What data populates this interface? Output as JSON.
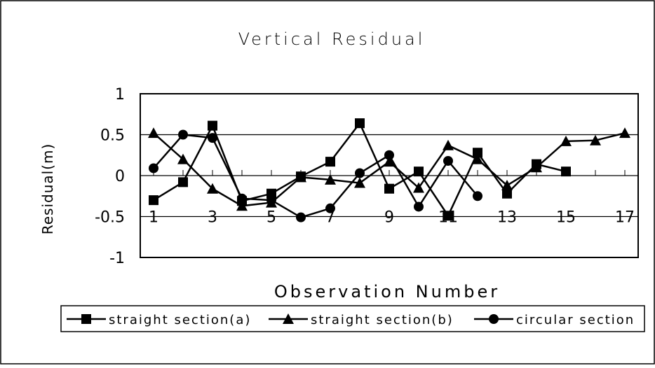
{
  "chart_data": {
    "type": "line",
    "title": "Vertical Residual",
    "xlabel": "Observation Number",
    "ylabel": "Residual(m)",
    "ylim": [
      -1,
      1
    ],
    "xlim": [
      1,
      17
    ],
    "yticks": [
      "1",
      "0.5",
      "0",
      "-0.5",
      "-1"
    ],
    "xticks": [
      "1",
      "3",
      "5",
      "7",
      "9",
      "11",
      "13",
      "15",
      "17"
    ],
    "grid": "horizontal",
    "legend": "bottom",
    "series": [
      {
        "name": "straight section(a)",
        "marker": "square",
        "color": "#000000",
        "x": [
          1,
          2,
          3,
          4,
          5,
          6,
          7,
          8,
          9,
          10,
          11,
          12,
          13,
          14,
          15
        ],
        "values": [
          -0.3,
          -0.08,
          0.61,
          -0.31,
          -0.22,
          -0.01,
          0.17,
          0.64,
          -0.16,
          0.05,
          -0.49,
          0.28,
          -0.22,
          0.14,
          0.05
        ]
      },
      {
        "name": "straight section(b)",
        "marker": "triangle",
        "color": "#000000",
        "x": [
          1,
          2,
          3,
          4,
          5,
          6,
          7,
          8,
          9,
          10,
          11,
          12,
          13,
          14,
          15,
          16,
          17
        ],
        "values": [
          0.52,
          0.2,
          -0.16,
          -0.37,
          -0.33,
          -0.02,
          -0.05,
          -0.09,
          0.17,
          -0.15,
          0.37,
          0.2,
          -0.12,
          0.1,
          0.42,
          0.43,
          0.52
        ]
      },
      {
        "name": "circular section",
        "marker": "circle",
        "color": "#000000",
        "x": [
          1,
          2,
          3,
          4,
          5,
          6,
          7,
          8,
          9,
          10,
          11,
          12
        ],
        "values": [
          0.09,
          0.5,
          0.46,
          -0.28,
          -0.3,
          -0.51,
          -0.4,
          0.03,
          0.25,
          -0.38,
          0.18,
          -0.25
        ]
      }
    ]
  }
}
